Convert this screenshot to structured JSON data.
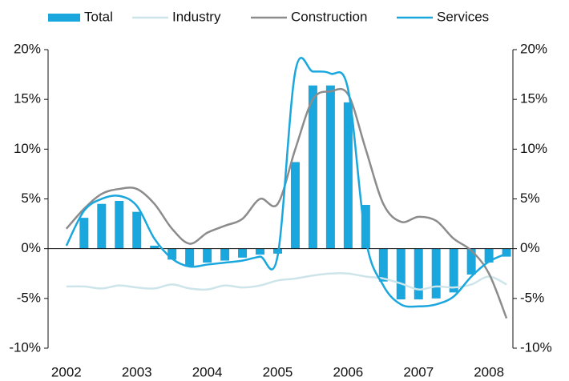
{
  "chart_data": {
    "type": "bar_line",
    "x": [
      2002,
      2002.25,
      2002.5,
      2002.75,
      2003,
      2003.25,
      2003.5,
      2003.75,
      2004,
      2004.25,
      2004.5,
      2004.75,
      2005,
      2005.25,
      2005.5,
      2005.75,
      2006,
      2006.25,
      2006.5,
      2006.75,
      2007,
      2007.25,
      2007.5,
      2007.75,
      2008,
      2008.25
    ],
    "series": [
      {
        "name": "Total",
        "type": "bar",
        "color": "#1aa7de",
        "values": [
          null,
          3.1,
          4.5,
          4.8,
          3.7,
          0.3,
          -1.1,
          -1.8,
          -1.4,
          -1.2,
          -0.9,
          -0.6,
          -0.5,
          8.7,
          16.4,
          16.4,
          14.7,
          4.4,
          -3.3,
          -5.1,
          -5.1,
          -5.0,
          -4.4,
          -2.6,
          -1.4,
          -0.8
        ]
      },
      {
        "name": "Industry",
        "type": "line",
        "color": "#cde5ea",
        "values": [
          -3.8,
          -3.8,
          -4.0,
          -3.7,
          -3.9,
          -4.0,
          -3.6,
          -4.0,
          -4.1,
          -3.7,
          -3.9,
          -3.7,
          -3.2,
          -3.0,
          -2.7,
          -2.5,
          -2.5,
          -2.8,
          -3.0,
          -3.5,
          -4.1,
          -3.8,
          -3.9,
          -3.6,
          -2.8,
          -3.6
        ]
      },
      {
        "name": "Construction",
        "type": "line",
        "color": "#8c8c8c",
        "values": [
          2.0,
          4.0,
          5.5,
          6.0,
          6.0,
          4.5,
          2.0,
          0.5,
          1.6,
          2.3,
          3.0,
          5.0,
          4.5,
          10.0,
          15.0,
          15.8,
          15.5,
          10.0,
          4.5,
          2.7,
          3.2,
          2.8,
          1.0,
          -0.2,
          -2.5,
          -7.0
        ]
      },
      {
        "name": "Services",
        "type": "line",
        "color": "#1aa7de",
        "values": [
          0.3,
          3.8,
          5.0,
          5.3,
          4.3,
          1.0,
          -1.0,
          -1.8,
          -1.6,
          -1.4,
          -1.2,
          -0.8,
          -0.7,
          17.8,
          17.8,
          17.6,
          16.0,
          1.0,
          -3.7,
          -5.6,
          -5.8,
          -5.6,
          -4.8,
          -2.8,
          -1.3,
          -0.5
        ]
      }
    ],
    "xlim": [
      2001.74,
      2008.34
    ],
    "xticks": [
      2002,
      2003,
      2004,
      2005,
      2006,
      2007,
      2008
    ],
    "ylim": [
      -10,
      20
    ],
    "yticks": [
      {
        "value": -10,
        "label": "-10%"
      },
      {
        "value": -5,
        "label": "-5%"
      },
      {
        "value": 0,
        "label": "0%"
      },
      {
        "value": 5,
        "label": "5%"
      },
      {
        "value": 10,
        "label": "10%"
      },
      {
        "value": 15,
        "label": "15%"
      },
      {
        "value": 20,
        "label": "20%"
      }
    ],
    "y2lim": [
      -10,
      20
    ],
    "y2ticks": [
      {
        "value": -10,
        "label": "-10%"
      },
      {
        "value": -5,
        "label": "-5%"
      },
      {
        "value": 0,
        "label": "0%"
      },
      {
        "value": 5,
        "label": "5%"
      },
      {
        "value": 10,
        "label": "10%"
      },
      {
        "value": 15,
        "label": "15%"
      },
      {
        "value": 20,
        "label": "20%"
      }
    ],
    "legend": "top"
  }
}
